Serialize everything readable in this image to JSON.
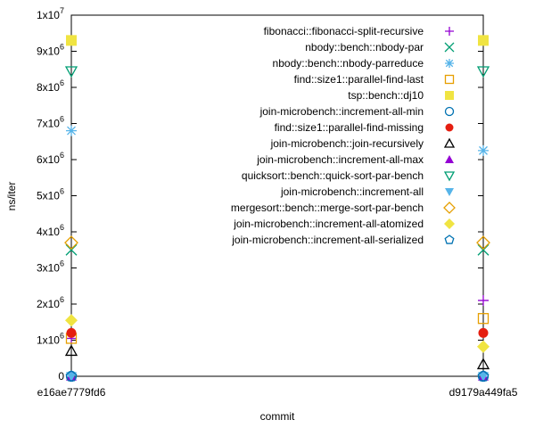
{
  "chart_data": {
    "type": "scatter",
    "xlabel": "commit",
    "ylabel": "ns/iter",
    "x_categories": [
      "e16ae7779fd6",
      "d9179a449fa5"
    ],
    "ylim": [
      0,
      10000000
    ],
    "y_ticks": [
      {
        "mant": "0",
        "exp": ""
      },
      {
        "mant": "1x10",
        "exp": "6"
      },
      {
        "mant": "2x10",
        "exp": "6"
      },
      {
        "mant": "3x10",
        "exp": "6"
      },
      {
        "mant": "4x10",
        "exp": "6"
      },
      {
        "mant": "5x10",
        "exp": "6"
      },
      {
        "mant": "6x10",
        "exp": "6"
      },
      {
        "mant": "7x10",
        "exp": "6"
      },
      {
        "mant": "8x10",
        "exp": "6"
      },
      {
        "mant": "9x10",
        "exp": "6"
      },
      {
        "mant": "1x10",
        "exp": "7"
      }
    ],
    "legend_position": "top-right",
    "series": [
      {
        "name": "fibonacci::fibonacci-split-recursive",
        "marker": "plus",
        "color": "#9400d3",
        "values": [
          1050000,
          2100000
        ]
      },
      {
        "name": "nbody::bench::nbody-par",
        "marker": "cross",
        "color": "#009e73",
        "values": [
          3500000,
          3500000
        ]
      },
      {
        "name": "nbody::bench::nbody-parreduce",
        "marker": "star",
        "color": "#56b4e9",
        "values": [
          6800000,
          6250000
        ]
      },
      {
        "name": "find::size1::parallel-find-last",
        "marker": "square-open",
        "color": "#e69f00",
        "values": [
          1050000,
          1600000
        ]
      },
      {
        "name": "tsp::bench::dj10",
        "marker": "square-filled",
        "color": "#f0e442",
        "values": [
          9300000,
          9300000
        ]
      },
      {
        "name": "join-microbench::increment-all-min",
        "marker": "circle-open",
        "color": "#0072b2",
        "values": [
          0,
          0
        ]
      },
      {
        "name": "find::size1::parallel-find-missing",
        "marker": "circle-filled",
        "color": "#e51e10",
        "values": [
          1200000,
          1200000
        ]
      },
      {
        "name": "join-microbench::join-recursively",
        "marker": "triangle-open",
        "color": "#000000",
        "values": [
          700000,
          330000
        ]
      },
      {
        "name": "join-microbench::increment-all-max",
        "marker": "triangle-filled",
        "color": "#9400d3",
        "values": [
          0,
          0
        ]
      },
      {
        "name": "quicksort::bench::quick-sort-par-bench",
        "marker": "triangle-down-open",
        "color": "#009e73",
        "values": [
          8450000,
          8450000
        ]
      },
      {
        "name": "join-microbench::increment-all",
        "marker": "triangle-down-filled",
        "color": "#56b4e9",
        "values": [
          0,
          0
        ]
      },
      {
        "name": "mergesort::bench::merge-sort-par-bench",
        "marker": "diamond-open",
        "color": "#e69f00",
        "values": [
          3700000,
          3700000
        ]
      },
      {
        "name": "join-microbench::increment-all-atomized",
        "marker": "diamond-filled",
        "color": "#f0e442",
        "values": [
          1550000,
          820000
        ]
      },
      {
        "name": "join-microbench::increment-all-serialized",
        "marker": "pentagon-open",
        "color": "#0072b2",
        "values": [
          0,
          0
        ]
      }
    ]
  }
}
